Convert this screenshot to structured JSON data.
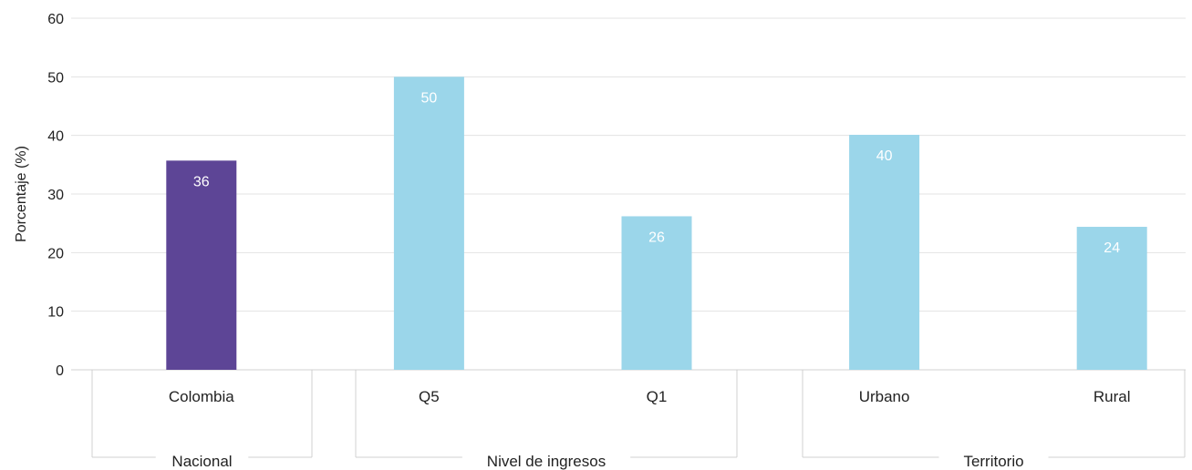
{
  "chart_data": {
    "type": "bar",
    "ylabel": "Porcentaje (%)",
    "ylim": [
      0,
      60
    ],
    "yticks": [
      0,
      10,
      20,
      30,
      40,
      50,
      60
    ],
    "grid": true,
    "categories": [
      "Colombia",
      "Q5",
      "Q1",
      "Urbano",
      "Rural"
    ],
    "values": [
      35.7,
      50,
      26.2,
      40.1,
      24.4
    ],
    "data_labels": [
      "36",
      "50",
      "26",
      "40",
      "24"
    ],
    "groups": [
      {
        "label": "Nacional",
        "categories": [
          "Colombia"
        ]
      },
      {
        "label": "Nivel de ingresos",
        "categories": [
          "Q5",
          "Q1"
        ]
      },
      {
        "label": "Territorio",
        "categories": [
          "Urbano",
          "Rural"
        ]
      }
    ],
    "colors": {
      "highlight": "#5d4596",
      "default": "#9bd6ea",
      "grid": "#e3e3e3",
      "axis": "#d0d0d0"
    },
    "highlight_category": "Colombia"
  }
}
